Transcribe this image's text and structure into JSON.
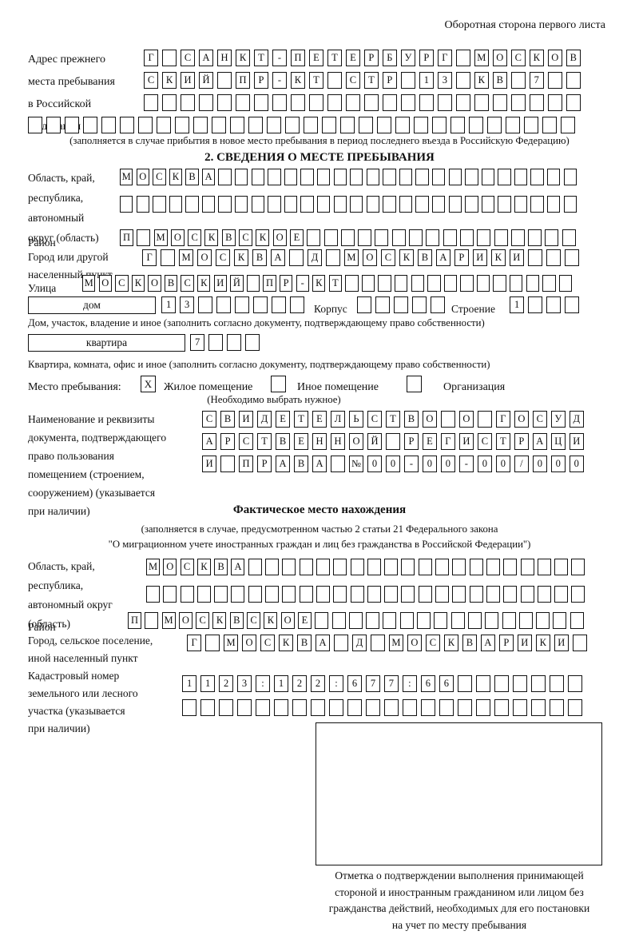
{
  "header": {
    "title": "Оборотная сторона первого листа"
  },
  "prev_address": {
    "label": [
      "Адрес прежнего",
      "места пребывания",
      "в Российской",
      "Федерации"
    ],
    "rows": [
      {
        "text": "Г САНКТ-ПЕТЕРБУРГ МОСКОВ",
        "count": 24
      },
      {
        "text": "СКИЙ ПР-КТ СТР 13 КВ 7",
        "count": 24
      },
      {
        "text": "",
        "count": 24
      },
      {
        "text": "",
        "count": 30
      }
    ],
    "note": "(заполняется в случае прибытия в новое место пребывания в период последнего въезда в Российскую Федерацию)"
  },
  "section2": {
    "title": "2. СВЕДЕНИЯ О МЕСТЕ ПРЕБЫВАНИЯ",
    "oblast": {
      "label": [
        "Область, край,",
        "республика,",
        "автономный",
        "округ (область)"
      ],
      "rows": [
        {
          "text": "МОСКВА",
          "count": 28
        },
        {
          "text": "",
          "count": 28
        }
      ]
    },
    "rayon": {
      "label": "Район",
      "row": {
        "text": "П МОСКВСКОЕ",
        "count": 27
      }
    },
    "gorod": {
      "label": [
        "Город или другой",
        "населенный пункт"
      ],
      "row": {
        "text": "Г МОСКВА Д МОСКВАРИКИ",
        "count": 24
      }
    },
    "ulitsa": {
      "label": "Улица",
      "row": {
        "text": "МОСКОВСКИЙ ПР-КТ",
        "count": 30
      }
    },
    "dom": {
      "box_label": "дом",
      "cells": {
        "text": "13",
        "count": 8
      },
      "korpus_label": "Корпус",
      "korpus_cells": {
        "text": "",
        "count": 5
      },
      "stroenie_label": "Строение",
      "stroenie_cells": {
        "text": "1",
        "count": 4
      },
      "note": "Дом, участок, владение и иное (заполнить согласно документу, подтверждающему право собственности)"
    },
    "kvartira": {
      "box_label": "квартира",
      "cells": {
        "text": "7",
        "count": 4
      },
      "note": "Квартира, комната, офис и иное (заполнить согласно документу, подтверждающему право собственности)"
    },
    "mesto": {
      "label": "Место пребывания:",
      "options": [
        {
          "label": "Жилое помещение",
          "checked": "X"
        },
        {
          "label": "Иное помещение",
          "checked": ""
        },
        {
          "label": "Организация",
          "checked": ""
        }
      ],
      "note": "(Необходимо выбрать нужное)"
    },
    "document": {
      "label": [
        "Наименование и реквизиты",
        "документа, подтверждающего",
        "право пользования",
        "помещением (строением,",
        "сооружением) (указывается",
        "при наличии)"
      ],
      "rows": [
        {
          "text": "СВИДЕТЕЛЬСТВО О ГОСУД",
          "count": 21
        },
        {
          "text": "АРСТВЕННОЙ РЕГИСТРАЦИ",
          "count": 21
        },
        {
          "text": "И ПРАВА №00-00-00/000",
          "count": 21
        }
      ]
    }
  },
  "fact": {
    "title": "Фактическое место нахождения",
    "notes": [
      "(заполняется в случае, предусмотренном частью 2 статьи 21 Федерального закона",
      "\"О миграционном учете иностранных граждан и лиц без гражданства в Российской Федерации\")"
    ],
    "oblast": {
      "label": [
        "Область, край,",
        "республика,",
        "автономный округ",
        "(область)"
      ],
      "rows": [
        {
          "text": "МОСКВА",
          "count": 26
        },
        {
          "text": "",
          "count": 26
        }
      ]
    },
    "rayon": {
      "label": "Район",
      "row": {
        "text": "П МОСКВСКОЕ",
        "count": 27
      }
    },
    "gorod": {
      "label": [
        "Город, сельское поселение,",
        "иной населенный пункт"
      ],
      "row": {
        "text": "Г МОСКВА Д МОСКВАРИКИ",
        "count": 22
      }
    },
    "kadastr": {
      "label": [
        "Кадастровый номер",
        "земельного или лесного",
        "участка (указывается",
        "при наличии)"
      ],
      "rows": [
        {
          "text": "1123:122:677:66",
          "count": 22
        },
        {
          "text": "",
          "count": 22
        }
      ]
    },
    "stamp_caption": [
      "Отметка о подтверждении выполнения принимающей",
      "стороной и иностранным гражданином или лицом без",
      "гражданства действий, необходимых для его постановки",
      "на учет по месту пребывания"
    ]
  }
}
